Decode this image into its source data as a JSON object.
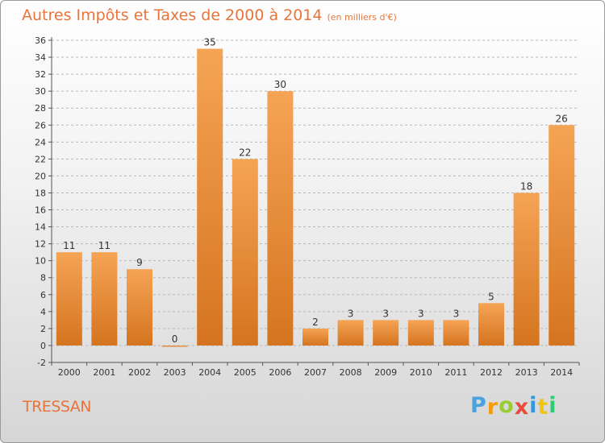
{
  "header": {
    "title": "Autres Impôts et Taxes de 2000 à 2014",
    "unit": "(en milliers d'€)"
  },
  "footer": {
    "commune": "TRESSAN",
    "logo_letters": [
      "P",
      "r",
      "o",
      "x",
      "i",
      "t",
      "i"
    ],
    "logo_colors": [
      "#4aa3df",
      "#f39c12",
      "#9acd32",
      "#e74c3c",
      "#3498db",
      "#f1c40f",
      "#2ecc71"
    ]
  },
  "colors": {
    "bar_light": "#f5a455",
    "bar_dark": "#d5741f",
    "grid": "#b8b8b8"
  },
  "chart_data": {
    "type": "bar",
    "title": "Autres Impôts et Taxes de 2000 à 2014",
    "subtitle": "(en milliers d'€)",
    "xlabel": "",
    "ylabel": "",
    "categories": [
      "2000",
      "2001",
      "2002",
      "2003",
      "2004",
      "2005",
      "2006",
      "2007",
      "2008",
      "2009",
      "2010",
      "2011",
      "2012",
      "2013",
      "2014"
    ],
    "values": [
      11,
      11,
      9,
      0,
      35,
      22,
      30,
      2,
      3,
      3,
      3,
      3,
      5,
      18,
      26
    ],
    "data_labels": [
      "11",
      "11",
      "9",
      "0",
      "35",
      "22",
      "30",
      "2",
      "3",
      "3",
      "3",
      "3",
      "5",
      "18",
      "26"
    ],
    "ylim": [
      -2,
      36
    ],
    "yticks": [
      "-2",
      "0",
      "2",
      "4",
      "6",
      "8",
      "10",
      "12",
      "14",
      "16",
      "18",
      "20",
      "22",
      "24",
      "26",
      "28",
      "30",
      "32",
      "34",
      "36"
    ],
    "grid": "horizontal dashed"
  }
}
